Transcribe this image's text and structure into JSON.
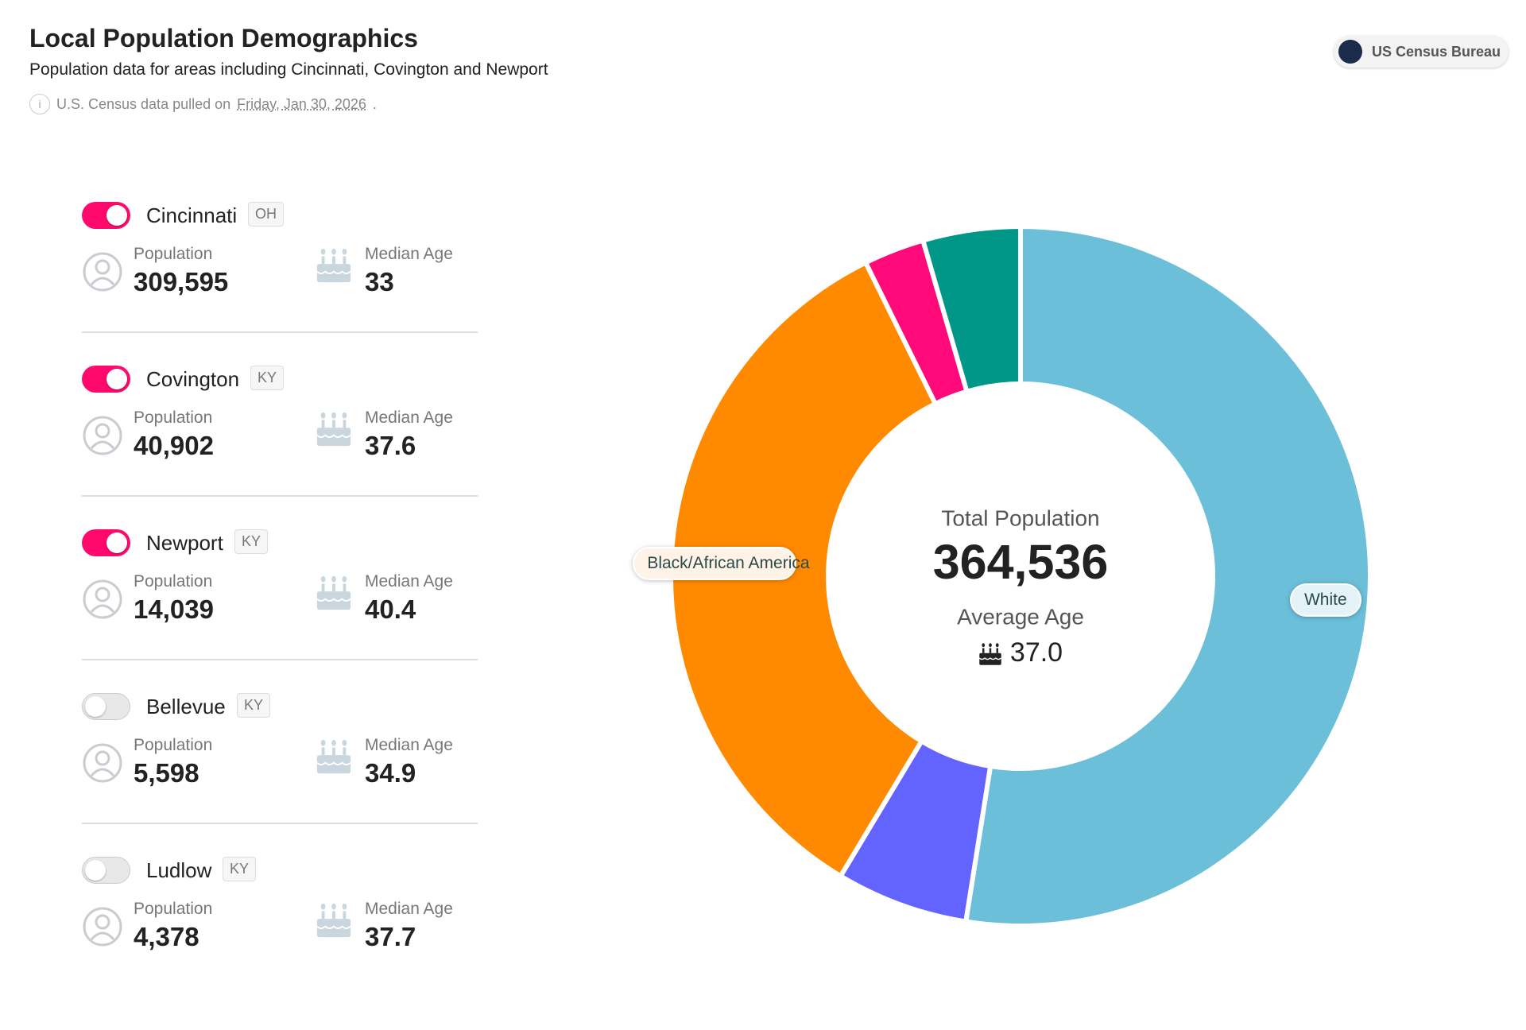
{
  "header": {
    "title": "Local Population Demographics",
    "subtitle": "Population data for areas including Cincinnati, Covington and Newport",
    "note": {
      "text": "U.S. Census data pulled on",
      "date": "Friday, Jan 30, 2026",
      "suffix": "."
    },
    "source": "US Census Bureau"
  },
  "cities": [
    {
      "name": "Cincinnati",
      "state": "OH",
      "enabled": true,
      "population_label": "Population",
      "population": "309,595",
      "age_label": "Median Age",
      "median_age": "33"
    },
    {
      "name": "Covington",
      "state": "KY",
      "enabled": true,
      "population_label": "Population",
      "population": "40,902",
      "age_label": "Median Age",
      "median_age": "37.6"
    },
    {
      "name": "Newport",
      "state": "KY",
      "enabled": true,
      "population_label": "Population",
      "population": "14,039",
      "age_label": "Median Age",
      "median_age": "40.4"
    },
    {
      "name": "Bellevue",
      "state": "KY",
      "enabled": false,
      "population_label": "Population",
      "population": "5,598",
      "age_label": "Median Age",
      "median_age": "34.9"
    },
    {
      "name": "Ludlow",
      "state": "KY",
      "enabled": false,
      "population_label": "Population",
      "population": "4,378",
      "age_label": "Median Age",
      "median_age": "37.7"
    }
  ],
  "chart_data": {
    "type": "donut",
    "categories": [
      "White",
      null,
      "Black/African American",
      null,
      null
    ],
    "values": [
      52.5,
      6.1,
      34.1,
      2.8,
      4.5
    ],
    "colors": [
      "#6bbfd8",
      "#6363ff",
      "#ff8a00",
      "#ff0a78",
      "#009688"
    ],
    "center": {
      "title": "Total Population",
      "value": "364,536",
      "subtitle": "Average Age",
      "age": "37.0"
    }
  }
}
